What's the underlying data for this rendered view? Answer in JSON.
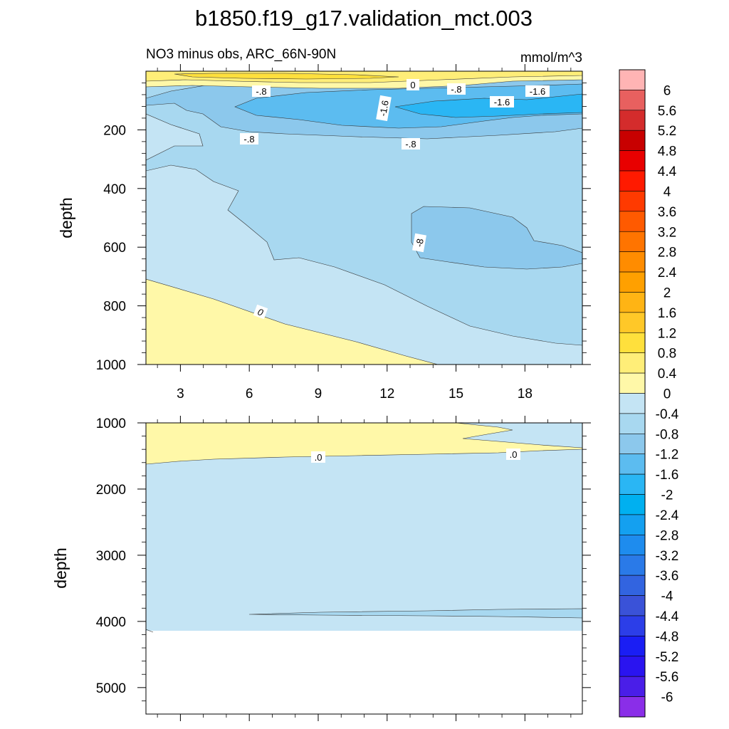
{
  "chart_data": {
    "type": "contour",
    "title": "b1850.f19_g17.validation_mct.003",
    "subtitle_left": "NO3 minus obs, ARC_66N-90N",
    "subtitle_right": "mmol/m^3",
    "x": {
      "range": [
        1.5,
        20.5
      ],
      "ticks": [
        3,
        6,
        9,
        12,
        15,
        18
      ],
      "tick_labels": [
        "3",
        "6",
        "9",
        "12",
        "15",
        "18"
      ]
    },
    "upper_panel": {
      "ylabel": "depth",
      "ylim": [
        0,
        1000
      ],
      "y_ticks": [
        200,
        400,
        600,
        800,
        1000
      ],
      "y_tick_labels": [
        "200",
        "400",
        "600",
        "800",
        "1000"
      ],
      "contour_labels": [
        "-.8",
        "0",
        "-.8",
        "-1.6",
        "-1.6",
        "-1.6",
        "-.8",
        "-.8",
        "-8",
        "0"
      ]
    },
    "lower_panel": {
      "ylabel": "depth",
      "ylim": [
        1000,
        5400
      ],
      "y_ticks": [
        1000,
        2000,
        3000,
        4000,
        5000
      ],
      "y_tick_labels": [
        "1000",
        "2000",
        "3000",
        "4000",
        "5000"
      ],
      "contour_labels": [
        ".0",
        ".0"
      ],
      "bottom_depth": 4120
    },
    "colorbar": {
      "labels": [
        "6",
        "5.6",
        "5.2",
        "4.8",
        "4.4",
        "4",
        "3.6",
        "3.2",
        "2.8",
        "2.4",
        "2",
        "1.6",
        "1.2",
        "0.8",
        "0.4",
        "0",
        "-0.4",
        "-0.8",
        "-1.2",
        "-1.6",
        "-2",
        "-2.4",
        "-2.8",
        "-3.2",
        "-3.6",
        "-4",
        "-4.4",
        "-4.8",
        "-5.2",
        "-5.6",
        "-6"
      ],
      "colors": [
        "#ffb4b4",
        "#e8605f",
        "#d42c2c",
        "#c80000",
        "#e80000",
        "#ff1a00",
        "#ff3a00",
        "#ff5a00",
        "#ff7400",
        "#ff8c00",
        "#ffa000",
        "#ffb414",
        "#ffc828",
        "#ffe03c",
        "#ffee78",
        "#fff8a8",
        "#c4e4f4",
        "#a8d8f0",
        "#8cc8ec",
        "#5cbcf0",
        "#2ab6f4",
        "#00b0f0",
        "#14a0f0",
        "#1e8cee",
        "#2a7ae8",
        "#3264e0",
        "#3a52d8",
        "#2c3ee8",
        "#1a1ef4",
        "#2a14f0",
        "#4a1ee8",
        "#8a2ee8"
      ]
    },
    "level_colors": {
      "pos_0_4": "#fff8a8",
      "pos_0_8": "#ffee78",
      "pos_1_2": "#ffe03c",
      "neg_0_4": "#c4e4f4",
      "neg_0_8": "#a8d8f0",
      "neg_1_2": "#8cc8ec",
      "neg_1_6": "#5cbcf0",
      "neg_2": "#2ab6f4"
    }
  }
}
